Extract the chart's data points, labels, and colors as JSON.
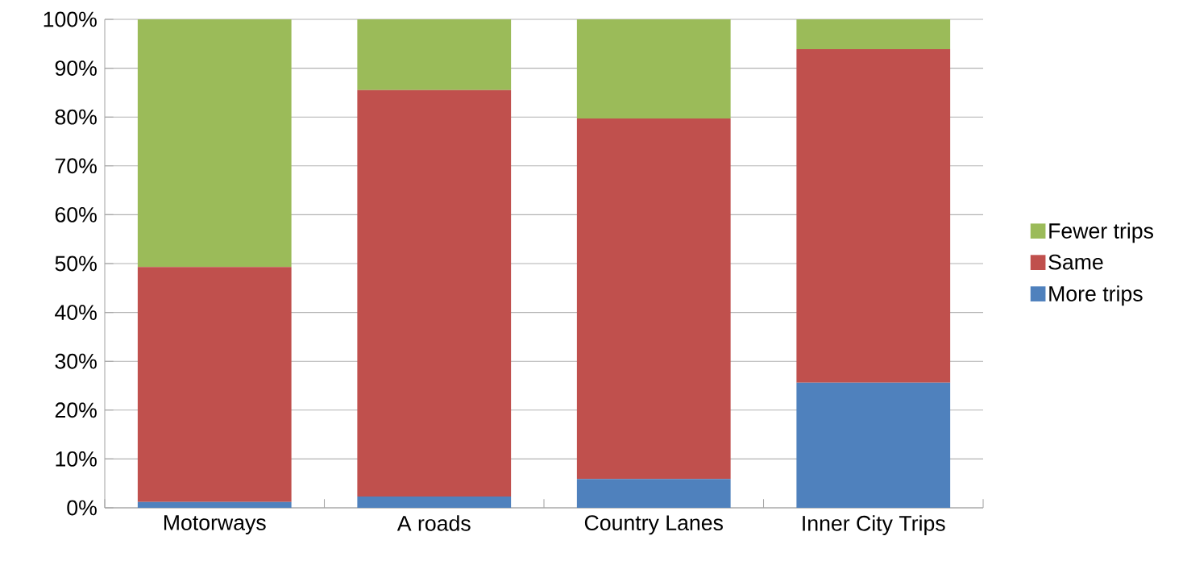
{
  "chart_data": {
    "type": "bar",
    "stacked": true,
    "categories": [
      "Motorways",
      "A roads",
      "Country Lanes",
      "Inner City Trips"
    ],
    "series": [
      {
        "name": "More trips",
        "color": "#4f81bd",
        "values": [
          1.2,
          2.3,
          5.9,
          25.6
        ]
      },
      {
        "name": "Same",
        "color": "#c0504d",
        "values": [
          48.1,
          83.2,
          73.8,
          68.3
        ]
      },
      {
        "name": "Fewer trips",
        "color": "#9bbb59",
        "values": [
          50.7,
          14.5,
          20.3,
          6.1
        ]
      }
    ],
    "ylim": [
      0,
      100
    ],
    "yticks": [
      {
        "value": 0,
        "label": "0%"
      },
      {
        "value": 10,
        "label": "10%"
      },
      {
        "value": 20,
        "label": "20%"
      },
      {
        "value": 30,
        "label": "30%"
      },
      {
        "value": 40,
        "label": "40%"
      },
      {
        "value": 50,
        "label": "50%"
      },
      {
        "value": 60,
        "label": "60%"
      },
      {
        "value": 70,
        "label": "70%"
      },
      {
        "value": 80,
        "label": "80%"
      },
      {
        "value": 90,
        "label": "90%"
      },
      {
        "value": 100,
        "label": "100%"
      }
    ],
    "grid": "y",
    "legend": "right"
  }
}
